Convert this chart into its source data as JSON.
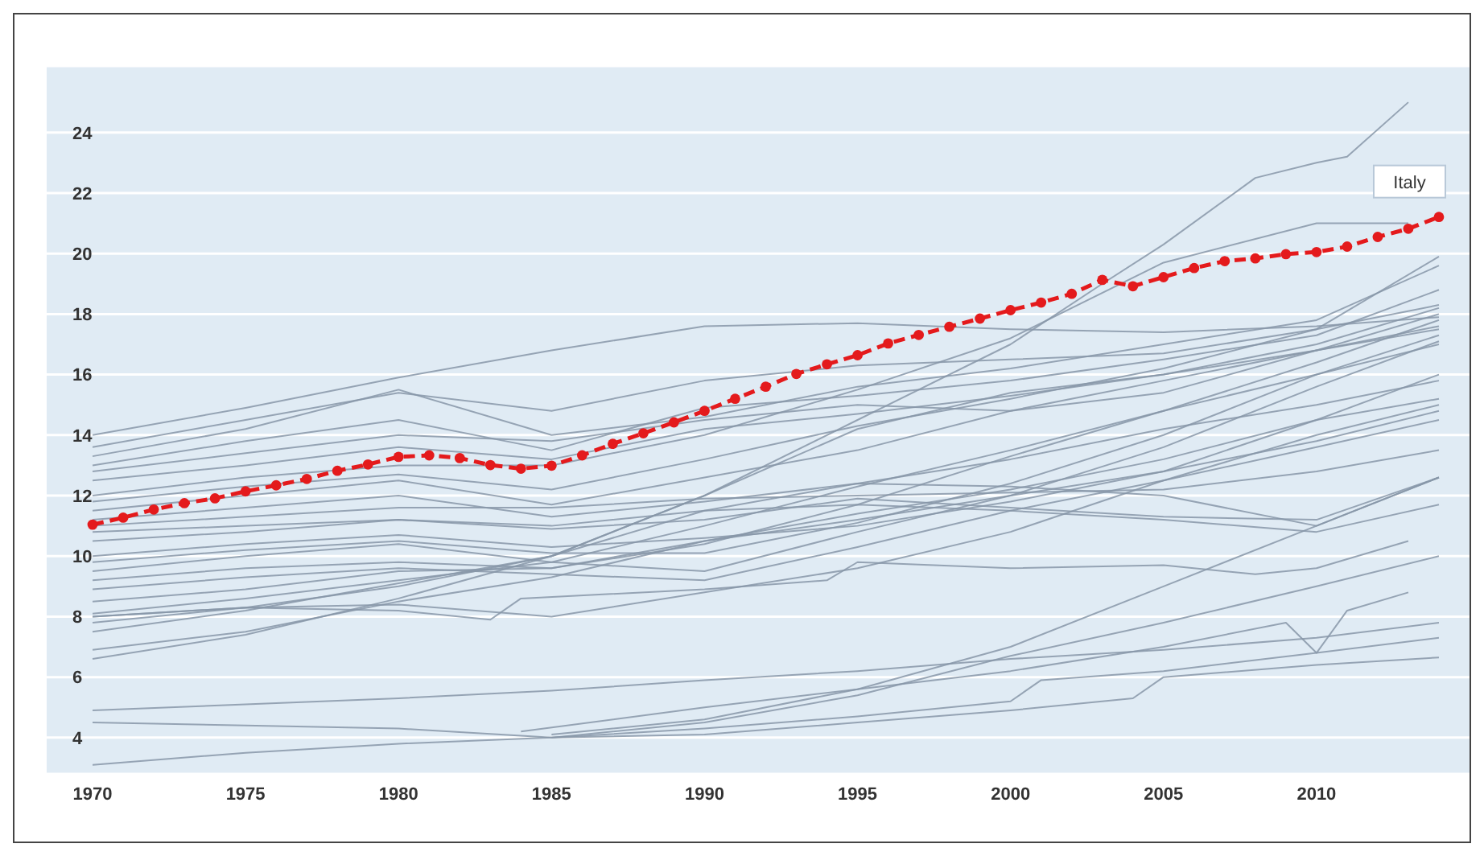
{
  "chart_data": {
    "type": "line",
    "x": [
      1970,
      1975,
      1980,
      1985,
      1990,
      1995,
      2000,
      2005,
      2010,
      2014
    ],
    "xlim": [
      1968.5,
      2015
    ],
    "xticks": [
      1970,
      1975,
      1980,
      1985,
      1990,
      1995,
      2000,
      2005,
      2010
    ],
    "ylim": [
      2.8,
      26.2
    ],
    "yticks": [
      4,
      6,
      8,
      10,
      12,
      14,
      16,
      18,
      20,
      22,
      24
    ],
    "grid": "y",
    "marker": "none",
    "line_style": "solid",
    "series": [
      {
        "color": "#8797a8",
        "values": [
          14.0,
          14.9,
          15.9,
          16.8,
          17.6,
          17.7,
          17.5,
          17.4,
          17.6,
          17.9
        ]
      },
      {
        "color": "#8797a8",
        "values": [
          13.6,
          14.5,
          15.4,
          14.8,
          15.8,
          16.3,
          16.5,
          16.7,
          17.5,
          18.3
        ]
      },
      {
        "color": "#8797a8",
        "values": [
          13.3,
          14.2,
          15.5,
          14.0,
          14.6,
          15.6,
          16.2,
          17.0,
          17.8,
          19.6
        ]
      },
      {
        "color": "#8797a8",
        "values": [
          13.0,
          13.8,
          14.5,
          13.5,
          14.9,
          15.3,
          15.8,
          16.5,
          17.3,
          18.8
        ]
      },
      {
        "color": "#8797a8",
        "values": [
          12.8,
          13.4,
          14.0,
          13.8,
          14.5,
          15.0,
          14.8,
          15.4,
          16.8,
          18.0
        ]
      },
      {
        "color": "#8797a8",
        "values": [
          12.5,
          13.0,
          13.6,
          13.2,
          14.2,
          14.7,
          15.3,
          16.0,
          17.0,
          18.2
        ]
      },
      {
        "color": "#8797a8",
        "x": [
          1970,
          1975,
          1980,
          1985,
          1990,
          1995,
          2000,
          2005,
          2010,
          2013
        ],
        "values": [
          12.0,
          12.6,
          13.0,
          13.0,
          14.0,
          15.5,
          17.2,
          19.7,
          21.0,
          21.0
        ]
      },
      {
        "color": "#8797a8",
        "values": [
          11.8,
          12.3,
          12.7,
          12.2,
          13.2,
          14.3,
          15.2,
          16.2,
          17.5,
          19.9
        ]
      },
      {
        "color": "#8797a8",
        "values": [
          11.5,
          12.0,
          12.5,
          11.7,
          12.6,
          13.5,
          14.8,
          15.8,
          16.8,
          17.6
        ]
      },
      {
        "color": "#8797a8",
        "values": [
          11.2,
          11.6,
          12.0,
          11.3,
          11.8,
          12.4,
          12.3,
          12.0,
          11.0,
          12.6
        ]
      },
      {
        "color": "#8797a8",
        "values": [
          11.0,
          11.3,
          11.6,
          11.6,
          11.9,
          12.0,
          12.1,
          12.2,
          12.8,
          13.5
        ]
      },
      {
        "color": "#8797a8",
        "values": [
          10.8,
          11.0,
          11.2,
          11.0,
          11.5,
          11.7,
          11.5,
          11.2,
          10.8,
          11.7
        ]
      },
      {
        "color": "#8797a8",
        "values": [
          10.5,
          10.8,
          11.2,
          10.9,
          11.2,
          11.9,
          11.6,
          11.3,
          11.2,
          12.6
        ]
      },
      {
        "color": "#8797a8",
        "values": [
          10.0,
          10.4,
          10.7,
          10.3,
          10.6,
          11.0,
          11.8,
          12.8,
          14.5,
          16.0
        ]
      },
      {
        "color": "#8797a8",
        "values": [
          9.8,
          10.2,
          10.5,
          10.1,
          10.1,
          11.1,
          12.4,
          14.0,
          16.0,
          17.3
        ]
      },
      {
        "color": "#8797a8",
        "values": [
          9.5,
          10.0,
          10.4,
          9.8,
          9.5,
          10.8,
          12.0,
          13.6,
          15.6,
          17.1
        ]
      },
      {
        "color": "#8797a8",
        "values": [
          9.2,
          9.6,
          9.8,
          9.6,
          10.4,
          11.7,
          13.3,
          14.8,
          16.4,
          17.8
        ]
      },
      {
        "color": "#8797a8",
        "values": [
          8.9,
          9.3,
          9.6,
          9.4,
          9.2,
          10.3,
          11.5,
          12.5,
          13.6,
          14.5
        ]
      },
      {
        "color": "#8797a8",
        "values": [
          8.5,
          8.9,
          9.5,
          9.6,
          10.5,
          11.4,
          12.2,
          13.2,
          14.5,
          15.2
        ]
      },
      {
        "color": "#8797a8",
        "values": [
          8.1,
          8.6,
          9.2,
          9.8,
          11.0,
          12.3,
          13.5,
          14.8,
          16.0,
          17.0
        ]
      },
      {
        "color": "#8797a8",
        "values": [
          8.0,
          8.3,
          9.0,
          10.0,
          12.0,
          14.2,
          15.4,
          16.0,
          16.8,
          17.5
        ]
      },
      {
        "color": "#8797a8",
        "values": [
          7.8,
          8.3,
          8.4,
          8.0,
          8.8,
          9.6,
          10.8,
          12.5,
          14.0,
          15.0
        ]
      },
      {
        "color": "#8797a8",
        "values": [
          7.5,
          8.2,
          9.1,
          10.0,
          11.5,
          12.4,
          13.2,
          14.2,
          15.0,
          15.8
        ]
      },
      {
        "color": "#8797a8",
        "values": [
          6.9,
          7.5,
          8.5,
          9.3,
          10.5,
          11.2,
          12.0,
          12.8,
          13.8,
          14.8
        ]
      },
      {
        "color": "#8797a8",
        "x": [
          1970,
          1975,
          1980,
          1985,
          1990,
          1995,
          2000,
          2003,
          2005,
          2008,
          2010,
          2011,
          2013
        ],
        "values": [
          6.6,
          7.4,
          8.6,
          10.0,
          12.0,
          14.5,
          17.0,
          19.0,
          20.3,
          22.5,
          23.0,
          23.2,
          25.0
        ]
      },
      {
        "color": "#8797a8",
        "x": [
          1970,
          1975,
          1980,
          1983,
          1984,
          1990,
          1994,
          1995,
          2000,
          2005,
          2008,
          2010,
          2013
        ],
        "values": [
          8.0,
          8.3,
          8.2,
          7.9,
          8.6,
          8.9,
          9.2,
          9.8,
          9.6,
          9.7,
          9.4,
          9.6,
          10.5
        ]
      },
      {
        "color": "#8797a8",
        "values": [
          4.9,
          5.1,
          5.3,
          5.55,
          5.9,
          6.2,
          6.6,
          6.9,
          7.3,
          7.8
        ]
      },
      {
        "color": "#8797a8",
        "x": [
          1970,
          1975,
          1980,
          1985,
          1990,
          1995,
          2000,
          2001,
          2005,
          2010,
          2014
        ],
        "values": [
          4.5,
          4.4,
          4.3,
          4.0,
          4.3,
          4.7,
          5.2,
          5.9,
          6.2,
          6.8,
          7.3
        ]
      },
      {
        "color": "#8797a8",
        "x": [
          1970,
          1975,
          1980,
          1985,
          1990,
          1995,
          2000,
          2004,
          2005,
          2010,
          2014
        ],
        "values": [
          3.1,
          3.5,
          3.8,
          4.0,
          4.1,
          4.5,
          4.9,
          5.3,
          6.0,
          6.4,
          6.65
        ]
      },
      {
        "color": "#8797a8",
        "x": [
          1984,
          1990,
          1995,
          2000,
          2005,
          2009,
          2010,
          2011,
          2013
        ],
        "values": [
          4.2,
          5.0,
          5.6,
          6.2,
          7.0,
          7.8,
          6.8,
          8.2,
          8.8
        ]
      },
      {
        "color": "#8797a8",
        "x": [
          1985,
          1990,
          1995,
          2000,
          2005,
          2010,
          2014
        ],
        "values": [
          4.0,
          4.5,
          5.4,
          6.7,
          7.8,
          9.0,
          10.0
        ]
      },
      {
        "color": "#8797a8",
        "x": [
          1985,
          1990,
          1995,
          2000,
          2005,
          2010,
          2014
        ],
        "values": [
          4.1,
          4.6,
          5.6,
          7.0,
          9.0,
          11.0,
          12.6
        ]
      },
      {
        "name": "Italy",
        "color": "#e41a1c",
        "marker": "circle",
        "line_style": "dashed",
        "x": [
          1970,
          1971,
          1972,
          1973,
          1974,
          1975,
          1976,
          1977,
          1978,
          1979,
          1980,
          1981,
          1982,
          1983,
          1984,
          1985,
          1986,
          1987,
          1988,
          1989,
          1990,
          1991,
          1992,
          1993,
          1994,
          1995,
          1996,
          1997,
          1998,
          1999,
          2000,
          2001,
          2002,
          2003,
          2004,
          2005,
          2006,
          2007,
          2008,
          2009,
          2010,
          2011,
          2012,
          2013,
          2014
        ],
        "values": [
          11.04,
          11.27,
          11.54,
          11.75,
          11.91,
          12.14,
          12.34,
          12.55,
          12.82,
          13.03,
          13.28,
          13.33,
          13.24,
          13.01,
          12.89,
          12.99,
          13.33,
          13.71,
          14.06,
          14.42,
          14.8,
          15.2,
          15.6,
          16.02,
          16.34,
          16.64,
          17.03,
          17.31,
          17.58,
          17.85,
          18.13,
          18.38,
          18.67,
          19.13,
          18.92,
          19.22,
          19.52,
          19.75,
          19.84,
          19.98,
          20.05,
          20.23,
          20.55,
          20.82,
          21.21
        ]
      }
    ]
  }
}
